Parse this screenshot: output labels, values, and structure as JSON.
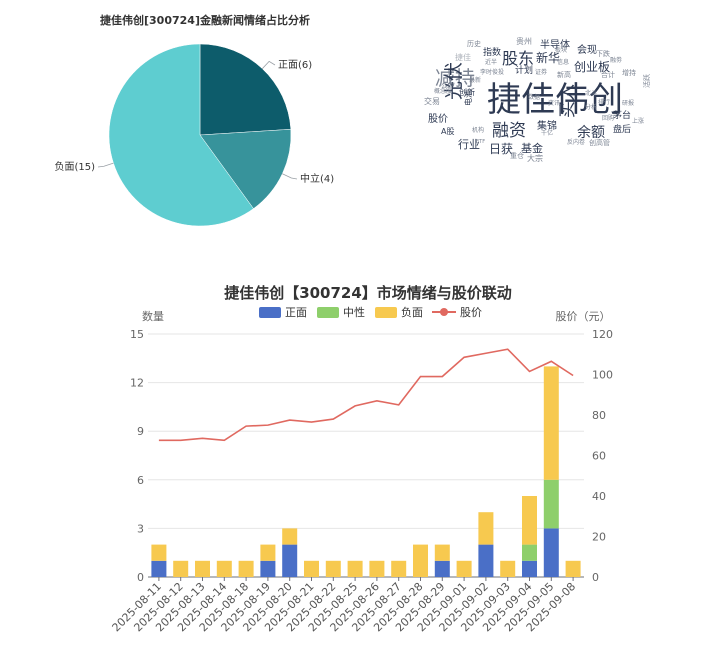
{
  "pie": {
    "title": "捷佳伟创[300724]金融新闻情绪占比分析",
    "chart_data": {
      "type": "pie",
      "slices": [
        {
          "label": "正面(6)",
          "value": 6,
          "color": "#0d5c6b"
        },
        {
          "label": "中立(4)",
          "value": 4,
          "color": "#37939b"
        },
        {
          "label": "负面(15)",
          "value": 15,
          "color": "#5ecdd0"
        }
      ]
    }
  },
  "wordcloud": {
    "words": [
      {
        "text": "捷佳伟创",
        "color": "#2e3a53"
      },
      {
        "text": "减持",
        "color": "#7c8493"
      },
      {
        "text": "光伏",
        "color": "#2e3a53"
      },
      {
        "text": "股东",
        "color": "#2e3a53"
      },
      {
        "text": "融资",
        "color": "#2e3a53"
      },
      {
        "text": "买入",
        "color": "#2e3a53"
      },
      {
        "text": "余额",
        "color": "#2e3a53"
      },
      {
        "text": "日获",
        "color": "#2e3a53"
      },
      {
        "text": "基金",
        "color": "#2e3a53"
      },
      {
        "text": "新华",
        "color": "#2e3a53"
      },
      {
        "text": "半导体",
        "color": "#2e3a53"
      },
      {
        "text": "会现",
        "color": "#2e3a53"
      },
      {
        "text": "创业板",
        "color": "#2e3a53"
      },
      {
        "text": "行业",
        "color": "#2e3a53"
      },
      {
        "text": "集锦",
        "color": "#2e3a53"
      },
      {
        "text": "股价",
        "color": "#2e3a53"
      },
      {
        "text": "指数",
        "color": "#2e3a53"
      },
      {
        "text": "历史",
        "color": "#7c8493"
      },
      {
        "text": "贵州",
        "color": "#7c8493"
      },
      {
        "text": "计划",
        "color": "#2e3a53"
      },
      {
        "text": "交易",
        "color": "#7c8493"
      },
      {
        "text": "创新",
        "color": "#2e3a53"
      },
      {
        "text": "电池",
        "color": "#2e3a53"
      },
      {
        "text": "A股",
        "color": "#2e3a53"
      },
      {
        "text": "机构",
        "color": "#7c8493"
      },
      {
        "text": "重仓",
        "color": "#7c8493"
      },
      {
        "text": "大宗",
        "color": "#7c8493"
      },
      {
        "text": "千亿",
        "color": "#7c8493"
      },
      {
        "text": "盘后",
        "color": "#2e3a53"
      },
      {
        "text": "上涨",
        "color": "#7c8493"
      },
      {
        "text": "茅台",
        "color": "#2e3a53"
      },
      {
        "text": "创高管",
        "color": "#7c8493"
      },
      {
        "text": "反内卷",
        "color": "#7c8493"
      },
      {
        "text": "北斗",
        "color": "#7c8493"
      },
      {
        "text": "概念股",
        "color": "#7c8493"
      },
      {
        "text": "下跌",
        "color": "#7c8493"
      },
      {
        "text": "新高",
        "color": "#7c8493"
      },
      {
        "text": "合计",
        "color": "#7c8493"
      },
      {
        "text": "增持",
        "color": "#7c8493"
      },
      {
        "text": "活跃",
        "color": "#7c8493"
      },
      {
        "text": "最新",
        "color": "#7c8493"
      },
      {
        "text": "捷佳",
        "color": "#b0b5bd"
      },
      {
        "text": "近半",
        "color": "#7c8493"
      },
      {
        "text": "李时俊投",
        "color": "#7c8493"
      },
      {
        "text": "证券",
        "color": "#7c8493"
      },
      {
        "text": "信息",
        "color": "#7c8493"
      },
      {
        "text": "ETF",
        "color": "#7c8493"
      },
      {
        "text": "回购",
        "color": "#7c8493"
      },
      {
        "text": "研报",
        "color": "#7c8493"
      },
      {
        "text": "融劵",
        "color": "#7c8493"
      },
      {
        "text": "排行",
        "color": "#7c8493"
      },
      {
        "text": "板块",
        "color": "#7c8493"
      },
      {
        "text": "数据",
        "color": "#7c8493"
      },
      {
        "text": "资讯",
        "color": "#7c8493"
      },
      {
        "text": "分析",
        "color": "#7c8493"
      },
      {
        "text": "公告",
        "color": "#7c8493"
      }
    ]
  },
  "main": {
    "chart_data": {
      "type": "bar+line",
      "title": "捷佳伟创【300724】市场情绪与股价联动",
      "ylabel_left": "数量",
      "ylabel_right": "股价（元）",
      "ylim_left": [
        0,
        15
      ],
      "ylim_right": [
        0,
        120
      ],
      "yticks_left": [
        "0",
        "3",
        "6",
        "9",
        "12",
        "15"
      ],
      "yticks_right": [
        "0",
        "20",
        "40",
        "60",
        "80",
        "100",
        "120"
      ],
      "categories": [
        "2025-08-11",
        "2025-08-12",
        "2025-08-13",
        "2025-08-14",
        "2025-08-18",
        "2025-08-19",
        "2025-08-20",
        "2025-08-21",
        "2025-08-22",
        "2025-08-25",
        "2025-08-26",
        "2025-08-27",
        "2025-08-28",
        "2025-08-29",
        "2025-09-01",
        "2025-09-02",
        "2025-09-03",
        "2025-09-04",
        "2025-09-05",
        "2025-09-08"
      ],
      "legend": [
        "正面",
        "中性",
        "负面",
        "股价"
      ],
      "series": [
        {
          "name": "正面",
          "type": "bar",
          "color": "#4a6fc7",
          "values": [
            1,
            0,
            0,
            0,
            0,
            1,
            2,
            0,
            0,
            0,
            0,
            0,
            0,
            1,
            0,
            2,
            0,
            1,
            3,
            0
          ]
        },
        {
          "name": "中性",
          "type": "bar",
          "color": "#8ecf6b",
          "values": [
            0,
            0,
            0,
            0,
            0,
            0,
            0,
            0,
            0,
            0,
            0,
            0,
            0,
            0,
            0,
            0,
            0,
            1,
            3,
            0
          ]
        },
        {
          "name": "负面",
          "type": "bar",
          "color": "#f7c94f",
          "values": [
            1,
            1,
            1,
            1,
            1,
            1,
            1,
            1,
            1,
            1,
            1,
            1,
            2,
            1,
            1,
            2,
            1,
            3,
            7,
            1
          ]
        },
        {
          "name": "股价",
          "type": "line",
          "color": "#e06960",
          "values": [
            67.5,
            67.5,
            68.5,
            67.5,
            74.5,
            75,
            77.5,
            76.5,
            78,
            84.5,
            87,
            85,
            99,
            99,
            108.5,
            110.5,
            112.5,
            101.5,
            106.5,
            99.5
          ]
        }
      ]
    }
  }
}
